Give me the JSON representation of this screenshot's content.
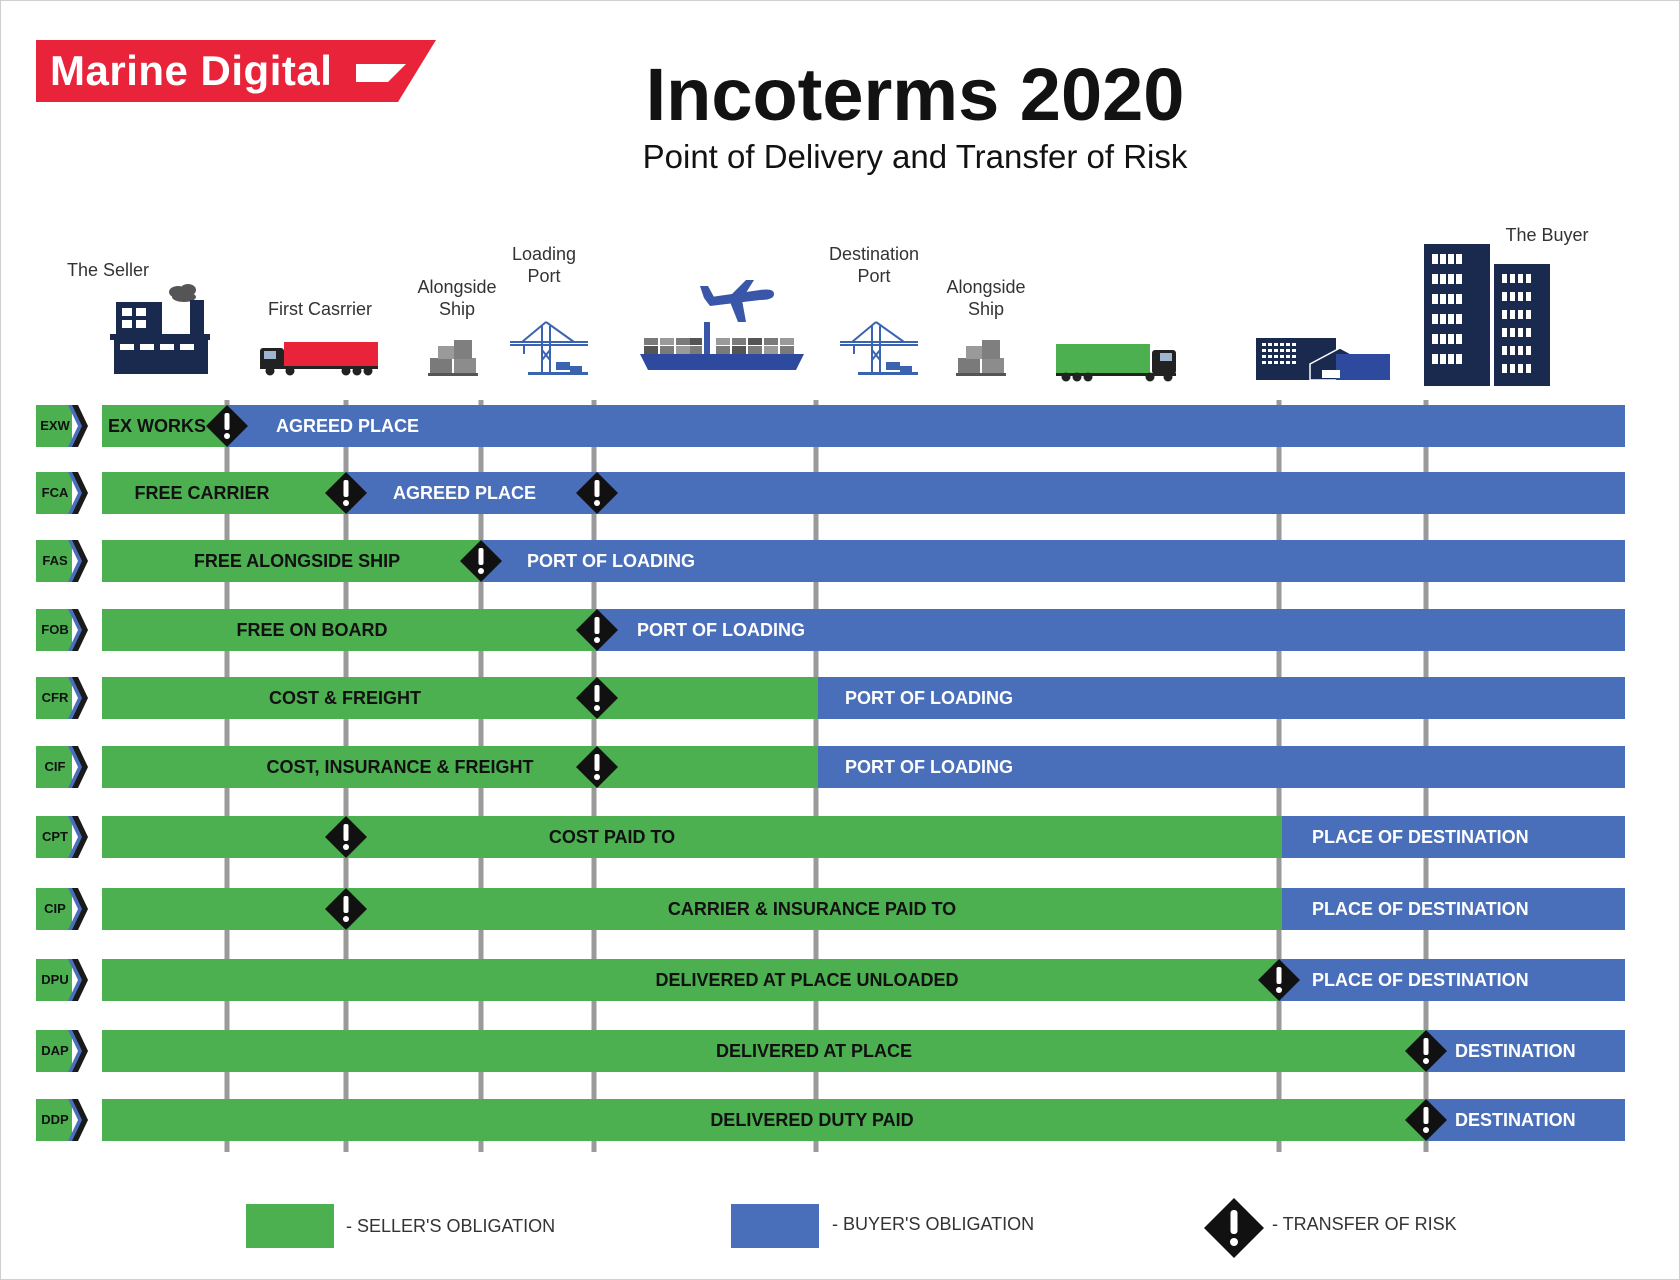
{
  "brand": {
    "name": "Marine Digital",
    "color": "#e8233a"
  },
  "title": "Incoterms 2020",
  "subtitle": "Point of Delivery and Transfer of Risk",
  "colors": {
    "seller": "#4caf50",
    "buyer": "#4a6fba",
    "risk": "#111111",
    "grid": "#9a9a9a"
  },
  "stages": {
    "seller": "The Seller",
    "first_carrier": "First Casrrier",
    "alongside_ship_1": [
      "Alongside",
      "Ship"
    ],
    "loading_port": [
      "Loading",
      "Port"
    ],
    "destination_port": [
      "Destination",
      "Port"
    ],
    "alongside_ship_2": [
      "Alongside",
      "Ship"
    ],
    "buyer": "The Buyer"
  },
  "icons": [
    "factory-icon",
    "red-truck-icon",
    "cargo-boxes-icon",
    "port-crane-icon",
    "cargo-ship-icon",
    "airplane-icon",
    "port-crane-icon",
    "cargo-boxes-icon",
    "green-truck-icon",
    "warehouse-icon",
    "buyer-buildings-icon"
  ],
  "rows": [
    {
      "code": "EXW",
      "seller": "EX WORKS",
      "buyer": "AGREED PLACE",
      "risks": [
        "seller"
      ]
    },
    {
      "code": "FCA",
      "seller": "FREE CARRIER",
      "buyer": "AGREED PLACE",
      "risks": [
        "first_carrier",
        "loading_port"
      ]
    },
    {
      "code": "FAS",
      "seller": "FREE ALONGSIDE SHIP",
      "buyer": "PORT OF LOADING",
      "risks": [
        "alongside_ship"
      ]
    },
    {
      "code": "FOB",
      "seller": "FREE ON BOARD",
      "buyer": "PORT OF LOADING",
      "risks": [
        "loading_port"
      ]
    },
    {
      "code": "CFR",
      "seller": "COST & FREIGHT",
      "buyer": "PORT OF LOADING",
      "risks": [
        "loading_port"
      ]
    },
    {
      "code": "CIF",
      "seller": "COST, INSURANCE & FREIGHT",
      "buyer": "PORT OF LOADING",
      "risks": [
        "loading_port"
      ]
    },
    {
      "code": "CPT",
      "seller": "COST PAID TO",
      "buyer": "PLACE OF DESTINATION",
      "risks": [
        "first_carrier"
      ]
    },
    {
      "code": "CIP",
      "seller": "CARRIER & INSURANCE PAID TO",
      "buyer": "PLACE OF DESTINATION",
      "risks": [
        "first_carrier"
      ]
    },
    {
      "code": "DPU",
      "seller": "DELIVERED AT PLACE UNLOADED",
      "buyer": "PLACE OF DESTINATION",
      "risks": [
        "destination_terminal"
      ]
    },
    {
      "code": "DAP",
      "seller": "DELIVERED AT PLACE",
      "buyer": "DESTINATION",
      "risks": [
        "buyer"
      ]
    },
    {
      "code": "DDP",
      "seller": "DELIVERED DUTY PAID",
      "buyer": "DESTINATION",
      "risks": [
        "buyer"
      ]
    }
  ],
  "legend": {
    "seller": "- SELLER'S OBLIGATION",
    "buyer": "- BUYER'S OBLIGATION",
    "risk": "- TRANSFER OF RISK"
  }
}
